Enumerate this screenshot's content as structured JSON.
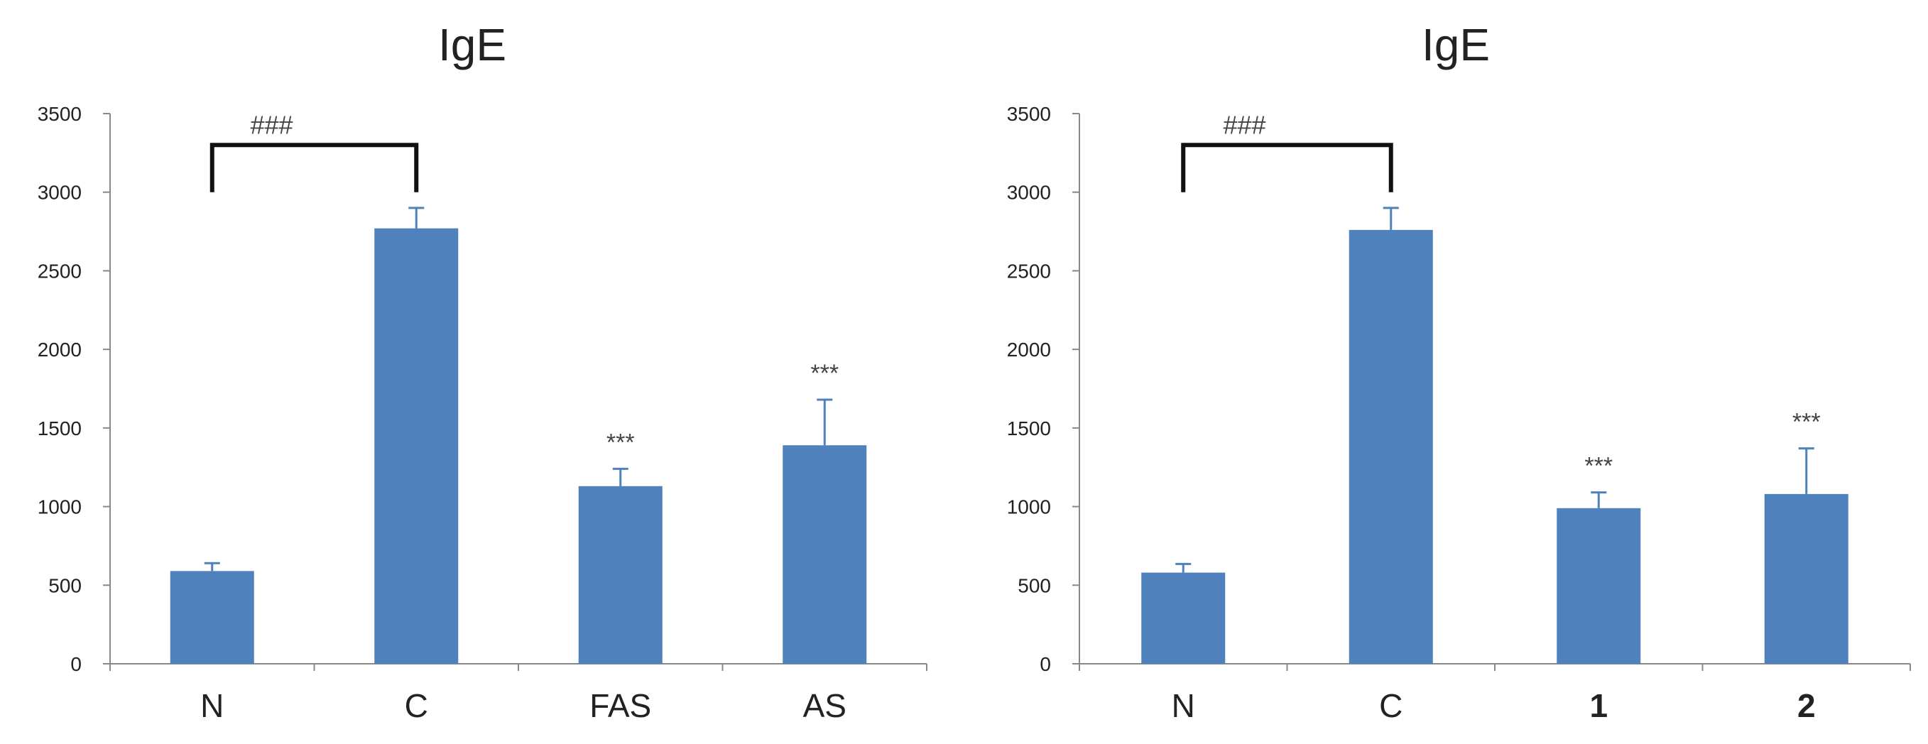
{
  "colors": {
    "bar": "#4F81BD",
    "axis": "#888888",
    "text": "#222222",
    "bracket": "#111111"
  },
  "chart_data": [
    {
      "type": "bar",
      "title": "IgE",
      "categories": [
        "N",
        "C",
        "FAS",
        "AS"
      ],
      "bold_categories": [],
      "values": [
        590,
        2770,
        1130,
        1390
      ],
      "errors": [
        50,
        130,
        110,
        290
      ],
      "annotations": [
        "",
        "",
        "***",
        "***"
      ],
      "ylim": [
        0,
        3500
      ],
      "yticks": [
        0,
        500,
        1000,
        1500,
        2000,
        2500,
        3000,
        3500
      ],
      "significance": {
        "label": "###",
        "from": "N",
        "to": "C",
        "y": 3000,
        "top": 3300
      }
    },
    {
      "type": "bar",
      "title": "IgE",
      "categories": [
        "N",
        "C",
        "1",
        "2"
      ],
      "bold_categories": [
        "1",
        "2"
      ],
      "values": [
        580,
        2760,
        990,
        1080
      ],
      "errors": [
        55,
        140,
        100,
        290
      ],
      "annotations": [
        "",
        "",
        "***",
        "***"
      ],
      "ylim": [
        0,
        3500
      ],
      "yticks": [
        0,
        500,
        1000,
        1500,
        2000,
        2500,
        3000,
        3500
      ],
      "significance": {
        "label": "###",
        "from": "N",
        "to": "C",
        "y": 3000,
        "top": 3300
      }
    }
  ]
}
